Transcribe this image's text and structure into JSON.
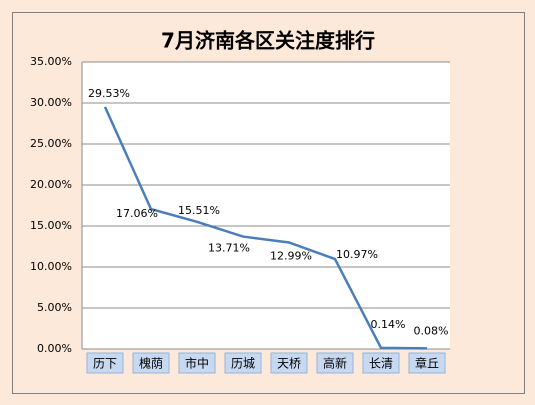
{
  "chart_data": {
    "type": "line",
    "title": "7月济南各区关注度排行",
    "categories": [
      "历下",
      "槐荫",
      "市中",
      "历城",
      "天桥",
      "高新",
      "长清",
      "章丘"
    ],
    "values": [
      29.53,
      17.06,
      15.51,
      13.71,
      12.99,
      10.97,
      0.14,
      0.08
    ],
    "value_labels": [
      "29.53%",
      "17.06%",
      "15.51%",
      "13.71%",
      "12.99%",
      "10.97%",
      "0.14%",
      "0.08%"
    ],
    "color": "#4a7ebb",
    "ylim": [
      0,
      35
    ],
    "yticks": [
      {
        "value": 0,
        "label": "0.00%"
      },
      {
        "value": 5,
        "label": "5.00%"
      },
      {
        "value": 10,
        "label": "10.00%"
      },
      {
        "value": 15,
        "label": "15.00%"
      },
      {
        "value": 20,
        "label": "20.00%"
      },
      {
        "value": 25,
        "label": "25.00%"
      },
      {
        "value": 30,
        "label": "30.00%"
      },
      {
        "value": 35,
        "label": "35.00%"
      }
    ],
    "grid": true
  }
}
